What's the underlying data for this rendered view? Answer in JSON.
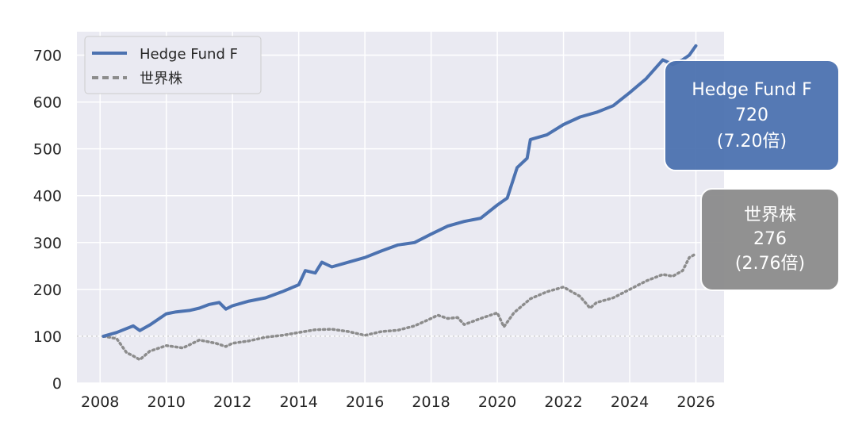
{
  "chart_data": {
    "type": "line",
    "title": "",
    "xlabel": "",
    "ylabel": "",
    "xlim": [
      2007.3,
      2026.85
    ],
    "ylim": [
      0,
      750
    ],
    "x_ticks": [
      "2008",
      "2010",
      "2012",
      "2014",
      "2016",
      "2018",
      "2020",
      "2022",
      "2024",
      "2026"
    ],
    "y_ticks": [
      "0",
      "100",
      "200",
      "300",
      "400",
      "500",
      "600",
      "700"
    ],
    "reference_line": 100,
    "grid": true,
    "legend_position": "top-left",
    "series": [
      {
        "name": "Hedge Fund F",
        "color": "#4c72b0",
        "style": "solid",
        "x": [
          2008.1,
          2008.5,
          2009.0,
          2009.2,
          2009.5,
          2010.0,
          2010.3,
          2010.7,
          2011.0,
          2011.3,
          2011.6,
          2011.8,
          2012.0,
          2012.5,
          2013.0,
          2013.5,
          2014.0,
          2014.2,
          2014.5,
          2014.7,
          2015.0,
          2015.5,
          2016.0,
          2016.5,
          2017.0,
          2017.5,
          2018.0,
          2018.5,
          2019.0,
          2019.5,
          2020.0,
          2020.3,
          2020.6,
          2020.9,
          2021.0,
          2021.5,
          2022.0,
          2022.5,
          2023.0,
          2023.5,
          2024.0,
          2024.5,
          2025.0,
          2025.3,
          2025.6,
          2025.8,
          2026.0
        ],
        "values": [
          100,
          108,
          122,
          112,
          124,
          148,
          152,
          155,
          160,
          168,
          172,
          158,
          165,
          175,
          182,
          195,
          210,
          240,
          235,
          258,
          248,
          258,
          268,
          282,
          295,
          300,
          318,
          335,
          345,
          352,
          380,
          395,
          460,
          480,
          520,
          530,
          552,
          568,
          578,
          592,
          620,
          650,
          690,
          680,
          690,
          700,
          720
        ]
      },
      {
        "name": "世界株",
        "color": "#8c8c8c",
        "style": "dotted",
        "x": [
          2008.1,
          2008.5,
          2008.8,
          2009.0,
          2009.2,
          2009.5,
          2010.0,
          2010.5,
          2011.0,
          2011.5,
          2011.8,
          2012.0,
          2012.5,
          2013.0,
          2013.5,
          2014.0,
          2014.5,
          2015.0,
          2015.5,
          2016.0,
          2016.5,
          2017.0,
          2017.5,
          2018.0,
          2018.2,
          2018.5,
          2018.8,
          2019.0,
          2019.5,
          2020.0,
          2020.2,
          2020.5,
          2021.0,
          2021.5,
          2022.0,
          2022.5,
          2022.8,
          2023.0,
          2023.5,
          2024.0,
          2024.5,
          2025.0,
          2025.3,
          2025.6,
          2025.8,
          2026.0
        ],
        "values": [
          100,
          95,
          65,
          58,
          50,
          68,
          80,
          75,
          92,
          85,
          78,
          85,
          90,
          98,
          102,
          108,
          114,
          115,
          110,
          102,
          110,
          113,
          122,
          138,
          145,
          138,
          140,
          125,
          138,
          150,
          120,
          150,
          180,
          195,
          205,
          185,
          160,
          172,
          182,
          200,
          218,
          232,
          228,
          240,
          268,
          276
        ]
      }
    ],
    "annotations": [
      {
        "series": "Hedge Fund F",
        "lines": [
          "Hedge Fund F",
          "720",
          "(7.20倍)"
        ],
        "box_color": "#4c72b0"
      },
      {
        "series": "世界株",
        "lines": [
          "世界株",
          "276",
          "(2.76倍)"
        ],
        "box_color": "#8c8c8c"
      }
    ]
  }
}
